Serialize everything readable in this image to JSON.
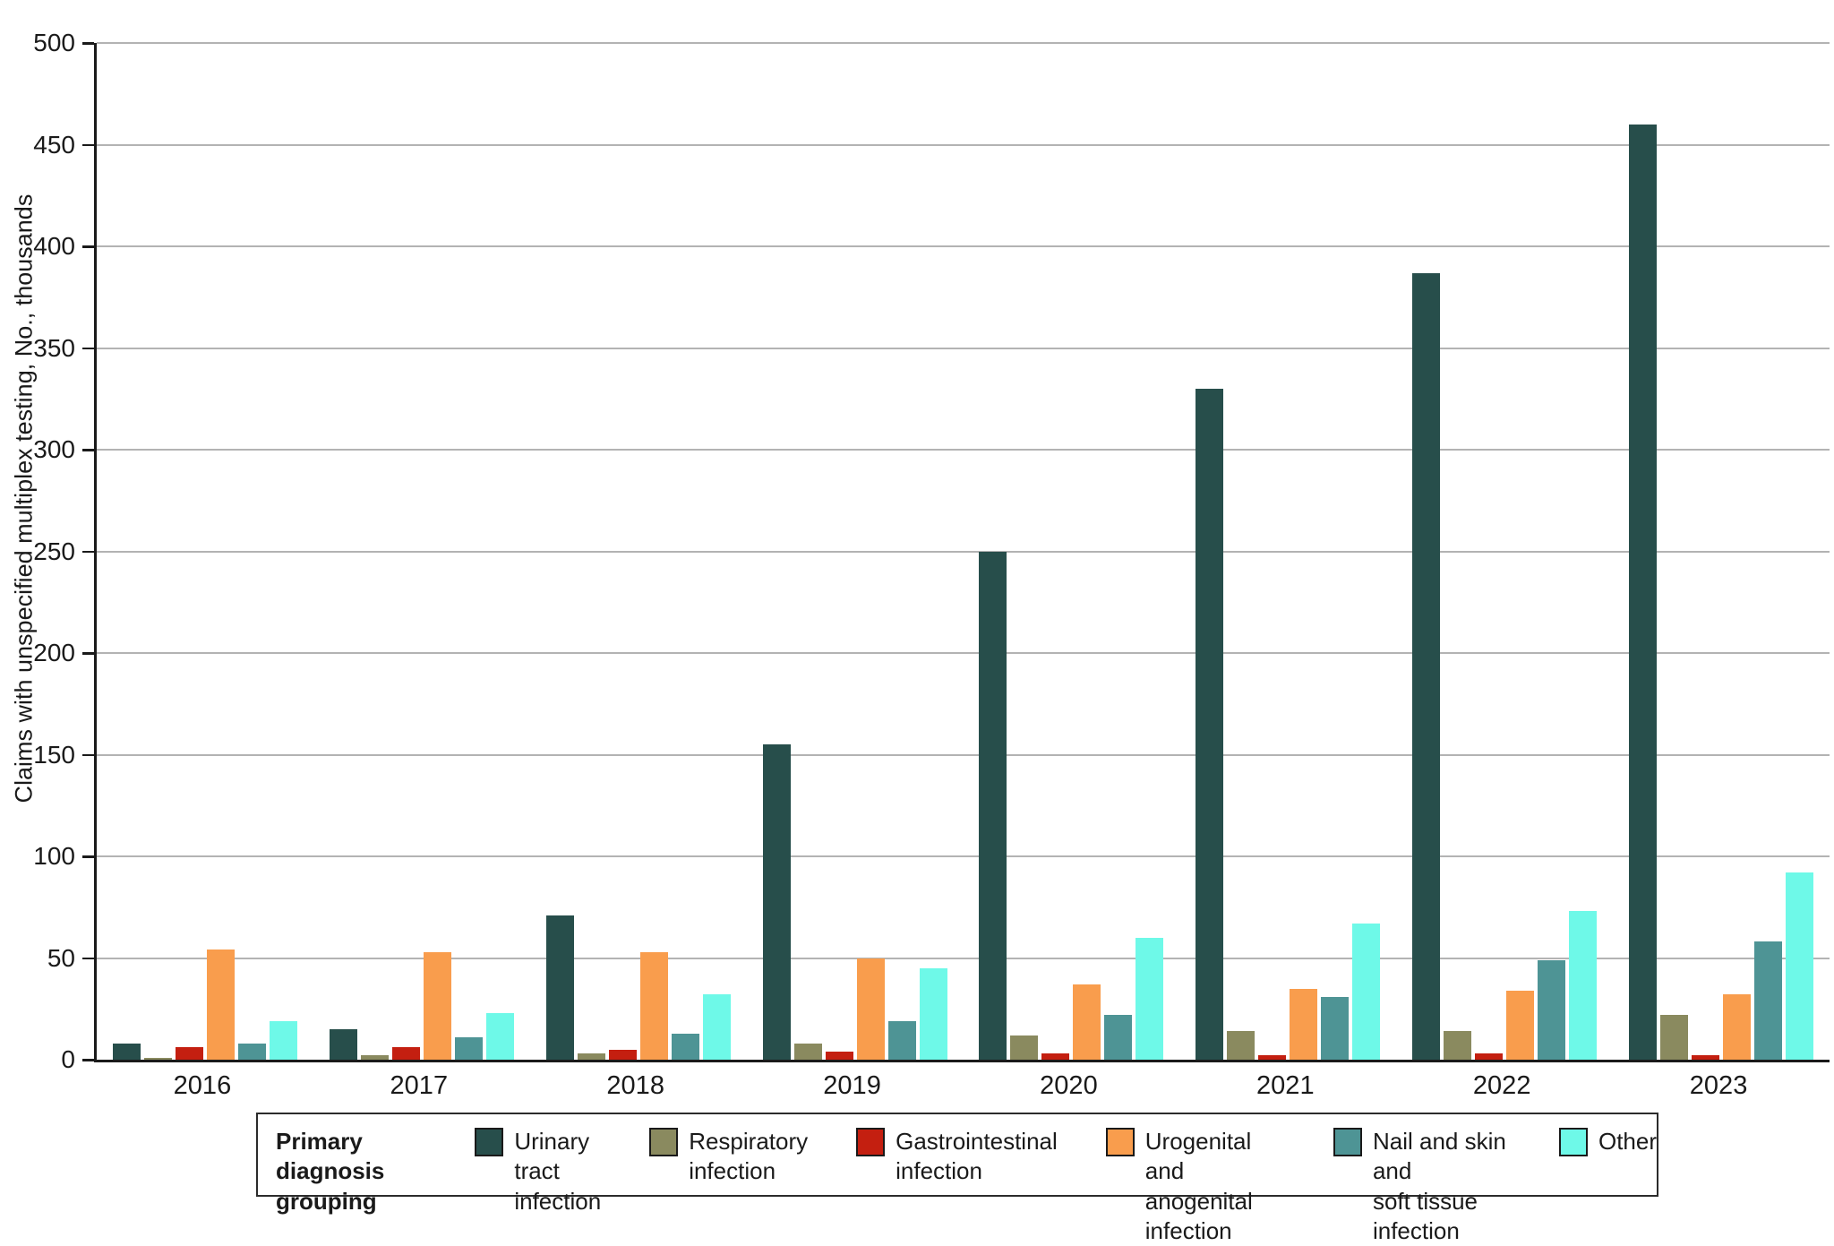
{
  "chart_data": {
    "type": "bar",
    "title": "",
    "xlabel": "",
    "ylabel": "Claims with unspecified multiplex testing, No., thousands",
    "ylim": [
      0,
      500
    ],
    "ytick_step": 50,
    "grid": true,
    "legend_position": "bottom",
    "legend_title": "Primary diagnosis grouping",
    "legend_title_lines": [
      "Primary diagnosis",
      "grouping"
    ],
    "categories": [
      "2016",
      "2017",
      "2018",
      "2019",
      "2020",
      "2021",
      "2022",
      "2023"
    ],
    "series": [
      {
        "name": "Urinary tract infection",
        "legend_lines": [
          "Urinary tract",
          "infection"
        ],
        "color": "#274e4b",
        "values": [
          8,
          15,
          71,
          155,
          250,
          330,
          387,
          460
        ]
      },
      {
        "name": "Respiratory infection",
        "legend_lines": [
          "Respiratory",
          "infection"
        ],
        "color": "#8a8a5f",
        "values": [
          1,
          2,
          3,
          8,
          12,
          14,
          14,
          22
        ]
      },
      {
        "name": "Gastrointestinal infection",
        "legend_lines": [
          "Gastrointestinal",
          "infection"
        ],
        "color": "#c41f10",
        "values": [
          6,
          6,
          5,
          4,
          3,
          2,
          3,
          2
        ]
      },
      {
        "name": "Urogenital and anogenital infection",
        "legend_lines": [
          "Urogenital and",
          "anogenital infection"
        ],
        "color": "#f99d4d",
        "values": [
          54,
          53,
          53,
          50,
          37,
          35,
          34,
          32
        ]
      },
      {
        "name": "Nail and skin and soft tissue infection",
        "legend_lines": [
          "Nail and skin and",
          "soft tissue infection"
        ],
        "color": "#4e9495",
        "values": [
          8,
          11,
          13,
          19,
          22,
          31,
          49,
          58
        ]
      },
      {
        "name": "Other",
        "legend_lines": [
          "Other"
        ],
        "color": "#6ef9e8",
        "values": [
          19,
          23,
          32,
          45,
          60,
          67,
          73,
          92
        ]
      }
    ]
  }
}
